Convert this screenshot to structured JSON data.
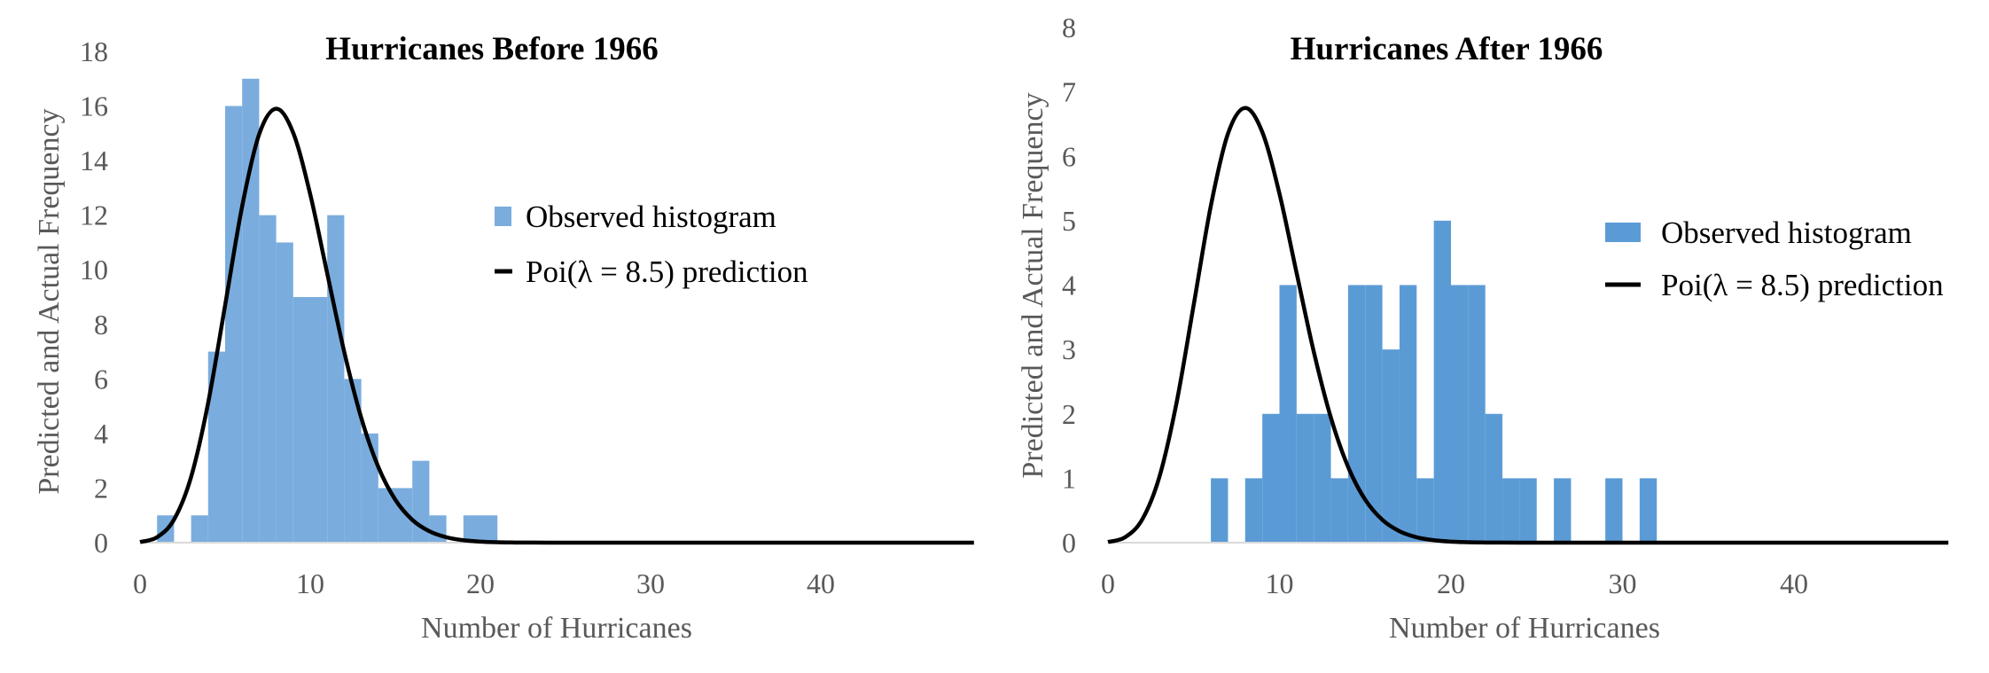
{
  "chart_data": [
    {
      "type": "bar",
      "title": "Hurricanes Before 1966",
      "xlabel": "Number of Hurricanes",
      "ylabel": "Predicted and Actual Frequency",
      "xlim": [
        0,
        49
      ],
      "ylim": [
        0,
        18
      ],
      "x_ticks": [
        0,
        10,
        20,
        30,
        40
      ],
      "y_ticks": [
        0,
        2,
        4,
        6,
        8,
        10,
        12,
        14,
        16,
        18
      ],
      "grid": false,
      "legend_position": "right",
      "bar_color": "#7aadde",
      "series": [
        {
          "name": "Observed histogram",
          "type": "histogram",
          "bins": [
            {
              "start": 0,
              "end": 1,
              "count": 0
            },
            {
              "start": 1,
              "end": 2,
              "count": 1
            },
            {
              "start": 2,
              "end": 3,
              "count": 0
            },
            {
              "start": 3,
              "end": 4,
              "count": 1
            },
            {
              "start": 4,
              "end": 5,
              "count": 7
            },
            {
              "start": 5,
              "end": 6,
              "count": 16
            },
            {
              "start": 6,
              "end": 7,
              "count": 17
            },
            {
              "start": 7,
              "end": 8,
              "count": 12
            },
            {
              "start": 8,
              "end": 9,
              "count": 11
            },
            {
              "start": 9,
              "end": 10,
              "count": 9
            },
            {
              "start": 10,
              "end": 11,
              "count": 9
            },
            {
              "start": 11,
              "end": 12,
              "count": 12
            },
            {
              "start": 12,
              "end": 13,
              "count": 6
            },
            {
              "start": 13,
              "end": 14,
              "count": 4
            },
            {
              "start": 14,
              "end": 15,
              "count": 2
            },
            {
              "start": 15,
              "end": 16,
              "count": 2
            },
            {
              "start": 16,
              "end": 17,
              "count": 3
            },
            {
              "start": 17,
              "end": 18,
              "count": 1
            },
            {
              "start": 18,
              "end": 19,
              "count": 0
            },
            {
              "start": 19,
              "end": 20,
              "count": 1
            },
            {
              "start": 20,
              "end": 21,
              "count": 1
            }
          ]
        },
        {
          "name": "Poi(λ = 8.5) prediction",
          "type": "line",
          "lambda": 8.5,
          "peak": 15.9,
          "color": "#000000"
        }
      ]
    },
    {
      "type": "bar",
      "title": "Hurricanes After 1966",
      "xlabel": "Number of Hurricanes",
      "ylabel": "Predicted and Actual Frequency",
      "xlim": [
        0,
        49
      ],
      "ylim": [
        0,
        8
      ],
      "x_ticks": [
        0,
        10,
        20,
        30,
        40
      ],
      "y_ticks": [
        0,
        1,
        2,
        3,
        4,
        5,
        6,
        7,
        8
      ],
      "grid": false,
      "legend_position": "right",
      "bar_color": "#5b9bd5",
      "series": [
        {
          "name": "Observed histogram",
          "type": "histogram",
          "bins": [
            {
              "start": 5,
              "end": 6,
              "count": 0
            },
            {
              "start": 6,
              "end": 7,
              "count": 1
            },
            {
              "start": 7,
              "end": 8,
              "count": 0
            },
            {
              "start": 8,
              "end": 9,
              "count": 1
            },
            {
              "start": 9,
              "end": 10,
              "count": 2
            },
            {
              "start": 10,
              "end": 11,
              "count": 4
            },
            {
              "start": 11,
              "end": 12,
              "count": 2
            },
            {
              "start": 12,
              "end": 13,
              "count": 2
            },
            {
              "start": 13,
              "end": 14,
              "count": 1
            },
            {
              "start": 14,
              "end": 15,
              "count": 4
            },
            {
              "start": 15,
              "end": 16,
              "count": 4
            },
            {
              "start": 16,
              "end": 17,
              "count": 3
            },
            {
              "start": 17,
              "end": 18,
              "count": 4
            },
            {
              "start": 18,
              "end": 19,
              "count": 1
            },
            {
              "start": 19,
              "end": 20,
              "count": 5
            },
            {
              "start": 20,
              "end": 21,
              "count": 4
            },
            {
              "start": 21,
              "end": 22,
              "count": 4
            },
            {
              "start": 22,
              "end": 23,
              "count": 2
            },
            {
              "start": 23,
              "end": 24,
              "count": 1
            },
            {
              "start": 24,
              "end": 25,
              "count": 1
            },
            {
              "start": 25,
              "end": 26,
              "count": 0
            },
            {
              "start": 26,
              "end": 27,
              "count": 1
            },
            {
              "start": 27,
              "end": 28,
              "count": 0
            },
            {
              "start": 28,
              "end": 29,
              "count": 0
            },
            {
              "start": 29,
              "end": 30,
              "count": 1
            },
            {
              "start": 30,
              "end": 31,
              "count": 0
            },
            {
              "start": 31,
              "end": 32,
              "count": 1
            }
          ]
        },
        {
          "name": "Poi(λ = 8.5) prediction",
          "type": "line",
          "lambda": 8.5,
          "peak": 6.75,
          "color": "#000000"
        }
      ]
    }
  ]
}
